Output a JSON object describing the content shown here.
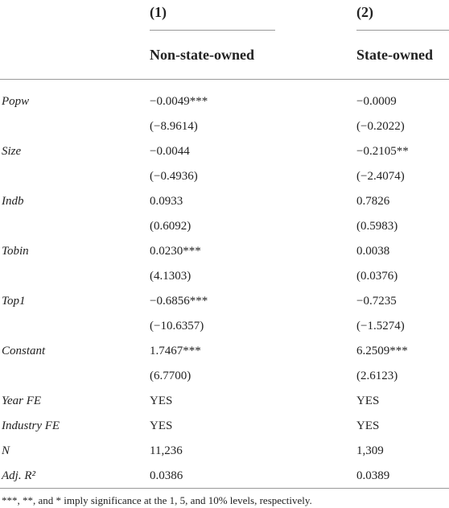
{
  "table": {
    "columns": [
      "(1)",
      "(2)"
    ],
    "subheaders": [
      "Non-state-owned",
      "State-owned"
    ],
    "rows": [
      [
        "Popw",
        "−0.0049***",
        "−0.0009"
      ],
      [
        "",
        "(−8.9614)",
        "(−0.2022)"
      ],
      [
        "Size",
        "−0.0044",
        "−0.2105**"
      ],
      [
        "",
        "(−0.4936)",
        "(−2.4074)"
      ],
      [
        "Indb",
        "0.0933",
        "0.7826"
      ],
      [
        "",
        "(0.6092)",
        "(0.5983)"
      ],
      [
        "Tobin",
        "0.0230***",
        "0.0038"
      ],
      [
        "",
        "(4.1303)",
        "(0.0376)"
      ],
      [
        "Top1",
        "−0.6856***",
        "−0.7235"
      ],
      [
        "",
        "(−10.6357)",
        "(−1.5274)"
      ],
      [
        "Constant",
        "1.7467***",
        "6.2509***"
      ],
      [
        "",
        "(6.7700)",
        "(2.6123)"
      ],
      [
        "Year FE",
        "YES",
        "YES"
      ],
      [
        "Industry FE",
        "YES",
        "YES"
      ],
      [
        "N",
        "11,236",
        "1,309"
      ],
      [
        "Adj. R²",
        "0.0386",
        "0.0389"
      ]
    ],
    "footnote": "***, **, and * imply significance at the 1, 5, and 10% levels, respectively."
  }
}
